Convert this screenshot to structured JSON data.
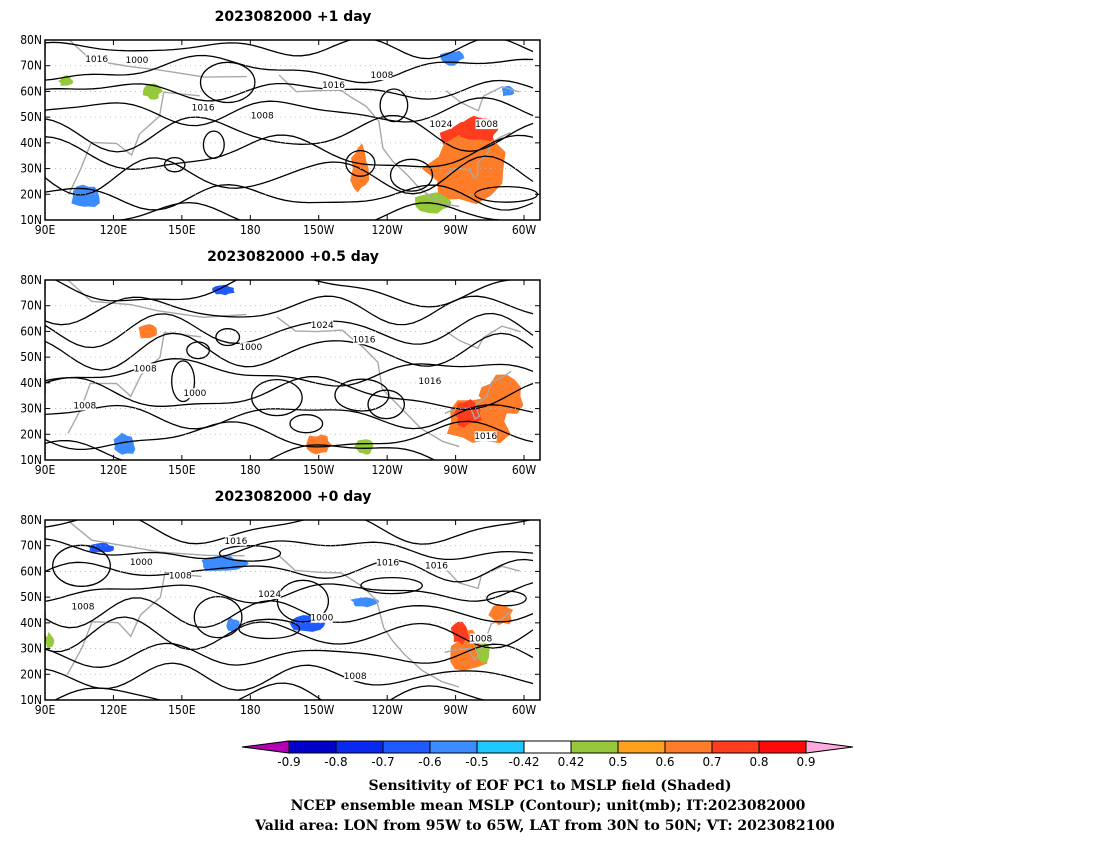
{
  "panels": [
    {
      "title": "2023082000  +1 day",
      "contour_labels": [
        "1016",
        "1000",
        "1016",
        "1008",
        "1016",
        "1008",
        "1024",
        "1008"
      ],
      "shading": [
        {
          "lon": -85,
          "lat": 40,
          "rlon": 12,
          "rlat": 8,
          "color": "#ff3c1e"
        },
        {
          "lon": -85,
          "lat": 30,
          "rlon": 18,
          "rlat": 14,
          "color": "#ff7d28"
        },
        {
          "lon": -80,
          "lat": 45,
          "rlon": 8,
          "rlat": 5,
          "color": "#ff3c1e"
        },
        {
          "lon": -100,
          "lat": 17,
          "rlon": 8,
          "rlat": 4,
          "color": "#96c83c"
        },
        {
          "lon": -132,
          "lat": 30,
          "rlon": 4,
          "rlat": 9,
          "color": "#ff7d28"
        },
        {
          "lon": 108,
          "lat": 19,
          "rlon": 6,
          "rlat": 5,
          "color": "#3c8cff"
        },
        {
          "lon": 137,
          "lat": 60,
          "rlon": 4,
          "rlat": 3,
          "color": "#96c83c"
        },
        {
          "lon": -92,
          "lat": 73,
          "rlon": 5,
          "rlat": 3,
          "color": "#3c8cff"
        },
        {
          "lon": 99,
          "lat": 64,
          "rlon": 3,
          "rlat": 2,
          "color": "#96c83c"
        },
        {
          "lon": -67,
          "lat": 60,
          "rlon": 3,
          "rlat": 2,
          "color": "#3c8cff"
        }
      ]
    },
    {
      "title": "2023082000  +0.5 day",
      "contour_labels": [
        "1008",
        "1008",
        "1000",
        "1000",
        "1024",
        "1016",
        "1016",
        "1016"
      ],
      "shading": [
        {
          "lon": -80,
          "lat": 25,
          "rlon": 14,
          "rlat": 10,
          "color": "#ff7d28"
        },
        {
          "lon": -70,
          "lat": 35,
          "rlon": 10,
          "rlat": 8,
          "color": "#ff7d28"
        },
        {
          "lon": -85,
          "lat": 28,
          "rlon": 6,
          "rlat": 5,
          "color": "#ff3c1e"
        },
        {
          "lon": -150,
          "lat": 16,
          "rlon": 6,
          "rlat": 4,
          "color": "#ff7d28"
        },
        {
          "lon": -130,
          "lat": 15,
          "rlon": 4,
          "rlat": 3,
          "color": "#96c83c"
        },
        {
          "lon": 125,
          "lat": 16,
          "rlon": 5,
          "rlat": 4,
          "color": "#3c8cff"
        },
        {
          "lon": 168,
          "lat": 76,
          "rlon": 5,
          "rlat": 2,
          "color": "#1e5aff"
        },
        {
          "lon": 135,
          "lat": 60,
          "rlon": 4,
          "rlat": 3,
          "color": "#ff7d28"
        }
      ]
    },
    {
      "title": "2023082000  +0 day",
      "contour_labels": [
        "1008",
        "1000",
        "1008",
        "1016",
        "1024",
        "1000",
        "1008",
        "1016",
        "1016",
        "1008"
      ],
      "shading": [
        {
          "lon": -85,
          "lat": 28,
          "rlon": 9,
          "rlat": 8,
          "color": "#ff7d28"
        },
        {
          "lon": -88,
          "lat": 36,
          "rlon": 4,
          "rlat": 4,
          "color": "#ff3c1e"
        },
        {
          "lon": -70,
          "lat": 43,
          "rlon": 5,
          "rlat": 4,
          "color": "#ff7d28"
        },
        {
          "lon": -78,
          "lat": 28,
          "rlon": 3,
          "rlat": 4,
          "color": "#96c83c"
        },
        {
          "lon": -155,
          "lat": 40,
          "rlon": 8,
          "rlat": 3,
          "color": "#1e5aff"
        },
        {
          "lon": -130,
          "lat": 48,
          "rlon": 6,
          "rlat": 2,
          "color": "#3c8cff"
        },
        {
          "lon": 168,
          "lat": 63,
          "rlon": 10,
          "rlat": 3,
          "color": "#3c8cff"
        },
        {
          "lon": 115,
          "lat": 69,
          "rlon": 6,
          "rlat": 2,
          "color": "#1e5aff"
        },
        {
          "lon": 172,
          "lat": 39,
          "rlon": 3,
          "rlat": 3,
          "color": "#3c8cff"
        },
        {
          "lon": 92,
          "lat": 33,
          "rlon": 2,
          "rlat": 3,
          "color": "#96c83c"
        }
      ]
    }
  ],
  "x_tick_labels": [
    "90E",
    "120E",
    "150E",
    "180",
    "150W",
    "120W",
    "90W",
    "60W"
  ],
  "y_tick_labels": [
    "10N",
    "20N",
    "30N",
    "40N",
    "50N",
    "60N",
    "70N",
    "80N"
  ],
  "colorbar": {
    "labels": [
      "-0.9",
      "-0.8",
      "-0.7",
      "-0.6",
      "-0.5",
      "-0.42",
      "0.42",
      "0.5",
      "0.6",
      "0.7",
      "0.8",
      "0.9"
    ],
    "colors": [
      "#b400b4",
      "#0000c8",
      "#0a28f0",
      "#1e5aff",
      "#3c8cff",
      "#1ec8ff",
      "#ffffff",
      "#96c83c",
      "#ffa01e",
      "#ff7d28",
      "#ff3c1e",
      "#ff0a0a",
      "#ffaadc"
    ]
  },
  "caption": [
    "Sensitivity of EOF PC1 to MSLP field (Shaded)",
    "NCEP ensemble mean MSLP (Contour); unit(mb); IT:2023082000",
    "Valid area: LON from 95W to 65W, LAT from 30N to 50N; VT: 2023082100"
  ]
}
